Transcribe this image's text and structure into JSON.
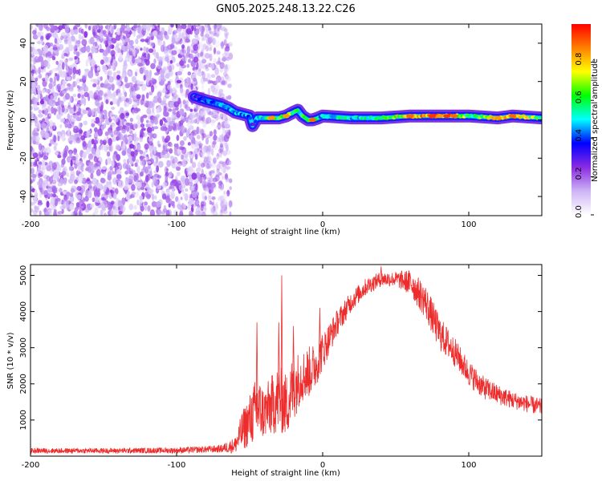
{
  "title": "GN05.2025.248.13.22.C26",
  "chart_data": [
    {
      "type": "heatmap",
      "xlabel": "Height of straight line (km)",
      "ylabel": "Frequency (Hz)",
      "xlim": [
        -200,
        150
      ],
      "ylim": [
        -50,
        50
      ],
      "xticks": [
        -200,
        -100,
        0,
        100
      ],
      "xtick_labels": [
        "-200",
        "-100",
        "0",
        "100"
      ],
      "yticks": [
        -40,
        -20,
        0,
        20,
        40
      ],
      "ytick_labels": [
        "-40",
        "-20",
        "0",
        "20",
        "40"
      ],
      "colorbar": {
        "label": "Normalized spectral amplitude",
        "range": [
          0,
          1
        ],
        "ticks": [
          0.0,
          0.2,
          0.4,
          0.6,
          0.8
        ],
        "tick_labels": [
          "0.0",
          "0.2",
          "0.4",
          "0.6",
          "0.8"
        ],
        "colors": [
          "#ffffff",
          "#cdb4f5",
          "#8a2be2",
          "#0000ff",
          "#00ffff",
          "#00ff00",
          "#ffff00",
          "#ff8000",
          "#ff0000"
        ]
      },
      "noise_region": {
        "x_from": -200,
        "x_to": -63,
        "amplitude": [
          0.05,
          0.25
        ]
      },
      "signal_track": [
        {
          "x": -88,
          "y": 12,
          "amp": 0.3
        },
        {
          "x": -80,
          "y": 10,
          "amp": 0.4
        },
        {
          "x": -75,
          "y": 9,
          "amp": 0.45
        },
        {
          "x": -70,
          "y": 8,
          "amp": 0.5
        },
        {
          "x": -64,
          "y": 6,
          "amp": 0.5
        },
        {
          "x": -60,
          "y": 4,
          "amp": 0.5
        },
        {
          "x": -55,
          "y": 3,
          "amp": 0.45
        },
        {
          "x": -50,
          "y": 2,
          "amp": 0.5
        },
        {
          "x": -48,
          "y": -3,
          "amp": 0.3
        },
        {
          "x": -45,
          "y": 1,
          "amp": 0.55
        },
        {
          "x": -40,
          "y": 1,
          "amp": 0.6
        },
        {
          "x": -35,
          "y": 1,
          "amp": 0.85
        },
        {
          "x": -30,
          "y": 1,
          "amp": 0.6
        },
        {
          "x": -25,
          "y": 2,
          "amp": 0.85
        },
        {
          "x": -20,
          "y": 4,
          "amp": 0.65
        },
        {
          "x": -17,
          "y": 5,
          "amp": 0.55
        },
        {
          "x": -14,
          "y": 2,
          "amp": 0.65
        },
        {
          "x": -10,
          "y": 0,
          "amp": 0.55
        },
        {
          "x": -7,
          "y": 0,
          "amp": 0.9
        },
        {
          "x": -3,
          "y": 1,
          "amp": 0.55
        },
        {
          "x": 0,
          "y": 2,
          "amp": 0.5
        },
        {
          "x": 20,
          "y": 1,
          "amp": 0.55
        },
        {
          "x": 40,
          "y": 1,
          "amp": 0.6
        },
        {
          "x": 60,
          "y": 2,
          "amp": 0.9
        },
        {
          "x": 75,
          "y": 2,
          "amp": 0.95
        },
        {
          "x": 80,
          "y": 2,
          "amp": 0.85
        },
        {
          "x": 85,
          "y": 2,
          "amp": 0.95
        },
        {
          "x": 90,
          "y": 2,
          "amp": 0.9
        },
        {
          "x": 100,
          "y": 2,
          "amp": 0.6
        },
        {
          "x": 120,
          "y": 1,
          "amp": 0.85
        },
        {
          "x": 130,
          "y": 2,
          "amp": 0.9
        },
        {
          "x": 150,
          "y": 1,
          "amp": 0.6
        }
      ]
    },
    {
      "type": "line",
      "xlabel": "Height of straight line (km)",
      "ylabel": "SNR (10 * v/v)",
      "xlim": [
        -200,
        150
      ],
      "ylim": [
        0,
        5300
      ],
      "xticks": [
        -200,
        -100,
        0,
        100
      ],
      "xtick_labels": [
        "-200",
        "-100",
        "0",
        "100"
      ],
      "yticks": [
        1000,
        2000,
        3000,
        4000,
        5000
      ],
      "ytick_labels": [
        "1000",
        "2000",
        "3000",
        "4000",
        "5000"
      ],
      "line_color": "#ee2c2c",
      "envelope": {
        "x": [
          -200,
          -150,
          -100,
          -70,
          -60,
          -55,
          -50,
          -45,
          -40,
          -30,
          -25,
          -20,
          -15,
          -10,
          -5,
          0,
          5,
          10,
          20,
          30,
          40,
          50,
          55,
          60,
          70,
          80,
          90,
          100,
          110,
          120,
          130,
          140,
          150
        ],
        "y": [
          150,
          150,
          160,
          200,
          300,
          700,
          1000,
          1300,
          1200,
          1600,
          1400,
          1900,
          2200,
          2300,
          2500,
          2900,
          3300,
          3700,
          4300,
          4700,
          4900,
          4900,
          4850,
          4800,
          4300,
          3400,
          2900,
          2300,
          1900,
          1700,
          1550,
          1450,
          1350
        ],
        "noise": [
          90,
          90,
          100,
          130,
          280,
          700,
          900,
          1200,
          900,
          1200,
          1100,
          1200,
          900,
          900,
          800,
          650,
          550,
          450,
          350,
          300,
          260,
          260,
          350,
          450,
          600,
          600,
          500,
          450,
          400,
          350,
          300,
          300,
          300
        ]
      },
      "spikes": [
        {
          "x": -45,
          "y": 3700
        },
        {
          "x": -30,
          "y": 3700
        },
        {
          "x": -28,
          "y": 5000
        },
        {
          "x": -20,
          "y": 3600
        },
        {
          "x": -2,
          "y": 4100
        },
        {
          "x": 40,
          "y": 5250
        },
        {
          "x": 62,
          "y": 4900
        }
      ]
    }
  ]
}
